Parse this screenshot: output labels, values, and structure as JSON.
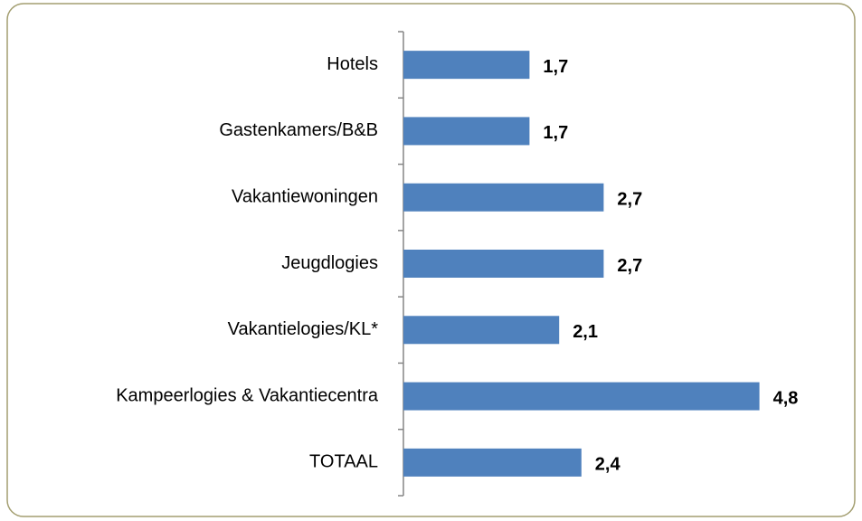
{
  "chart_data": {
    "type": "bar",
    "orientation": "horizontal",
    "categories": [
      "Hotels",
      "Gastenkamers/B&B",
      "Vakantiewoningen",
      "Jeugdlogies",
      "Vakantielogies/KL*",
      "Kampeerlogies & Vakantiecentra",
      "TOTAAL"
    ],
    "values": [
      1.7,
      1.7,
      2.7,
      2.7,
      2.1,
      4.8,
      2.4
    ],
    "value_labels": [
      "1,7",
      "1,7",
      "2,7",
      "2,7",
      "2,1",
      "4,8",
      "2,4"
    ],
    "color": "#4f81bd",
    "xlim": [
      0,
      6
    ]
  }
}
